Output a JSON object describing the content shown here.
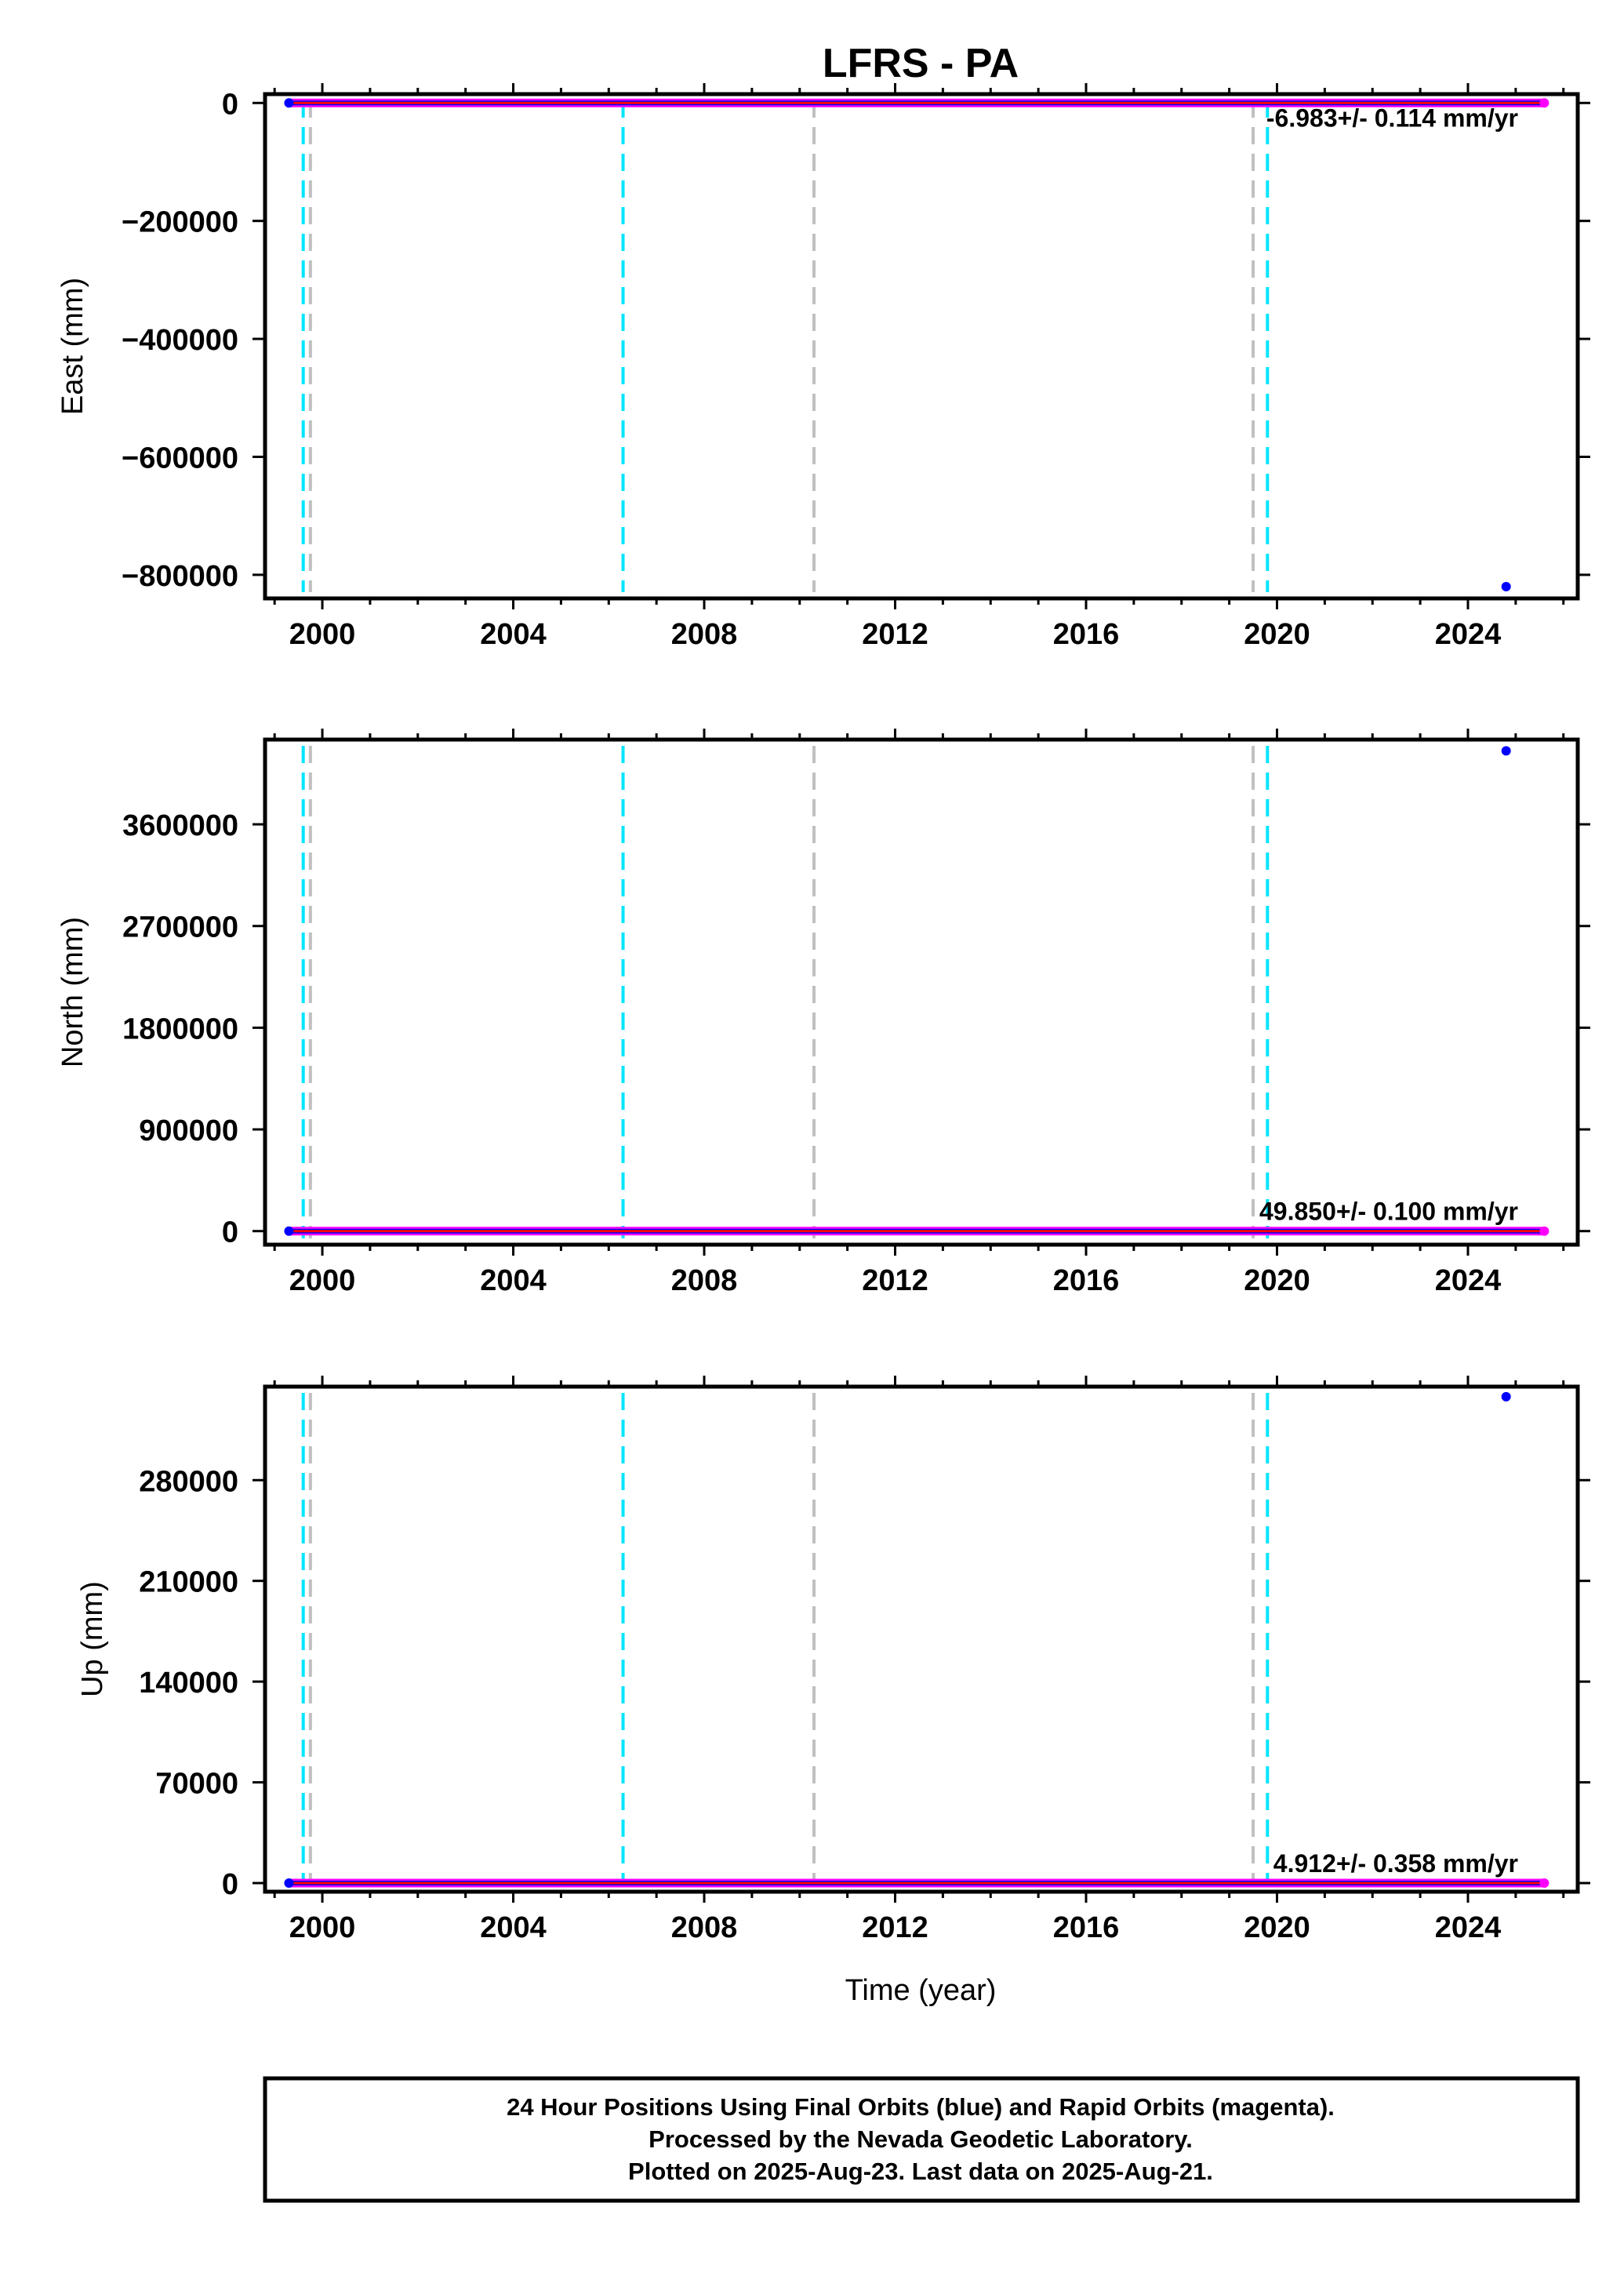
{
  "title": "LFRS - PA",
  "xlabel": "Time (year)",
  "x_ticks": [
    2000,
    2004,
    2008,
    2012,
    2016,
    2020,
    2024
  ],
  "x_tick_labels": [
    "2000",
    "2004",
    "2008",
    "2012",
    "2016",
    "2020",
    "2024"
  ],
  "footer": {
    "line1": "24 Hour Positions Using Final Orbits (blue) and Rapid Orbits (magenta).",
    "line2": "Processed by the Nevada Geodetic Laboratory.",
    "line3": "Plotted on 2025-Aug-23. Last data on 2025-Aug-21."
  },
  "colors": {
    "final_orbits": "#0000ff",
    "rapid_orbits": "#ff00ff",
    "fit_line": "#ff0000",
    "cyan_markers": "#00e5ff",
    "gray_markers": "#c0c0c0"
  },
  "chart_data": [
    {
      "type": "scatter",
      "id": "east",
      "ylabel": "East (mm)",
      "xlim": [
        1998.8,
        2026.3
      ],
      "ylim": [
        -840000,
        15000
      ],
      "y_ticks": [
        0,
        -200000,
        -400000,
        -600000,
        -800000
      ],
      "y_tick_labels": [
        "0",
        "−200000",
        "−400000",
        "−600000",
        "−800000"
      ],
      "rate_label": "-6.983+/- 0.114 mm/yr",
      "series_extent": [
        1999.3,
        2025.6
      ],
      "flat_value": 0,
      "outliers": [
        {
          "x": 2024.8,
          "y": -820000
        }
      ],
      "cyan_lines": [
        1999.6,
        2006.3,
        2019.8
      ],
      "gray_lines": [
        1999.75,
        2010.3,
        2019.5
      ]
    },
    {
      "type": "scatter",
      "id": "north",
      "ylabel": "North (mm)",
      "xlim": [
        1998.8,
        2026.3
      ],
      "ylim": [
        -120000,
        4350000
      ],
      "y_ticks": [
        0,
        900000,
        1800000,
        2700000,
        3600000
      ],
      "y_tick_labels": [
        "0",
        "900000",
        "1800000",
        "2700000",
        "3600000"
      ],
      "rate_label": "49.850+/- 0.100 mm/yr",
      "series_extent": [
        1999.3,
        2025.6
      ],
      "flat_value": 0,
      "outliers": [
        {
          "x": 2024.8,
          "y": 4250000
        }
      ],
      "cyan_lines": [
        1999.6,
        2006.3,
        2019.8
      ],
      "gray_lines": [
        1999.75,
        2010.3,
        2019.5
      ]
    },
    {
      "type": "scatter",
      "id": "up",
      "ylabel": "Up (mm)",
      "xlim": [
        1998.8,
        2026.3
      ],
      "ylim": [
        -6000,
        345000
      ],
      "y_ticks": [
        0,
        70000,
        140000,
        210000,
        280000
      ],
      "y_tick_labels": [
        "0",
        "70000",
        "140000",
        "210000",
        "280000"
      ],
      "rate_label": "4.912+/- 0.358 mm/yr",
      "series_extent": [
        1999.3,
        2025.6
      ],
      "flat_value": 0,
      "outliers": [
        {
          "x": 2024.8,
          "y": 338000
        }
      ],
      "cyan_lines": [
        1999.6,
        2006.3,
        2019.8
      ],
      "gray_lines": [
        1999.75,
        2010.3,
        2019.5
      ]
    }
  ]
}
